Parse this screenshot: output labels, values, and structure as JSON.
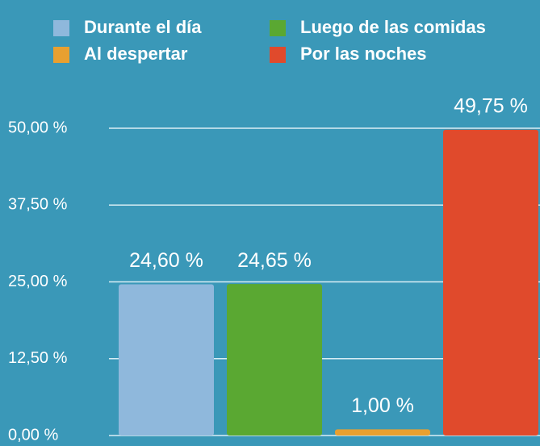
{
  "chart_data": {
    "type": "bar",
    "categories": [
      "Durante el día",
      "Luego de las comidas",
      "Al despertar",
      "Por las noches"
    ],
    "values": [
      24.6,
      24.65,
      1.0,
      49.75
    ],
    "value_labels": [
      "24,60 %",
      "24,65 %",
      "1,00 %",
      "49,75 %"
    ],
    "colors": [
      "#8fb8dc",
      "#5aa832",
      "#e8a030",
      "#e04a2c"
    ],
    "ylim": [
      0,
      50
    ],
    "yticks": [
      {
        "value": 0,
        "label": "0,00 %"
      },
      {
        "value": 12.5,
        "label": "12,50 %"
      },
      {
        "value": 25,
        "label": "25,00 %"
      },
      {
        "value": 37.5,
        "label": "37,50 %"
      },
      {
        "value": 50,
        "label": "50,00 %"
      }
    ],
    "grid": true
  }
}
